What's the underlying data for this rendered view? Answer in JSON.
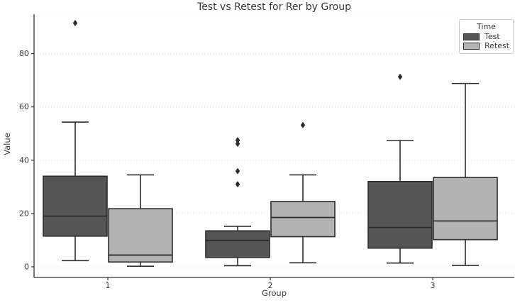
{
  "chart_data": {
    "type": "boxplot",
    "title": "Test vs Retest for Rer by Group",
    "xlabel": "Group",
    "ylabel": "Value",
    "categories": [
      "1",
      "2",
      "3"
    ],
    "yticks": [
      0,
      20,
      40,
      60,
      80
    ],
    "ylim": [
      -4,
      94.8
    ],
    "grid": "horizontal dotted gridlines at y ticks",
    "legend": {
      "title": "Time",
      "position": "upper right",
      "entries": [
        {
          "label": "Test",
          "color": "#555556"
        },
        {
          "label": "Retest",
          "color": "#b3b3b4"
        }
      ]
    },
    "series": [
      {
        "name": "Test",
        "color": "#555556",
        "boxes": [
          {
            "category": "1",
            "whisker_low": 2.3,
            "q1": 11.5,
            "median": 19.0,
            "q3": 34.0,
            "whisker_high": 54.3,
            "outliers": [
              91.5
            ]
          },
          {
            "category": "2",
            "whisker_low": 0.4,
            "q1": 3.5,
            "median": 9.9,
            "q3": 13.5,
            "whisker_high": 15.2,
            "outliers": [
              31.0,
              35.9,
              46.2,
              47.5
            ]
          },
          {
            "category": "3",
            "whisker_low": 1.4,
            "q1": 7.0,
            "median": 14.7,
            "q3": 32.0,
            "whisker_high": 47.4,
            "outliers": [
              71.3
            ]
          }
        ]
      },
      {
        "name": "Retest",
        "color": "#b3b3b4",
        "boxes": [
          {
            "category": "1",
            "whisker_low": 0.2,
            "q1": 1.8,
            "median": 4.4,
            "q3": 21.8,
            "whisker_high": 34.5,
            "outliers": []
          },
          {
            "category": "2",
            "whisker_low": 1.5,
            "q1": 11.3,
            "median": 18.5,
            "q3": 24.5,
            "whisker_high": 34.5,
            "outliers": [
              53.2
            ]
          },
          {
            "category": "3",
            "whisker_low": 0.5,
            "q1": 10.2,
            "median": 17.2,
            "q3": 33.5,
            "whisker_high": 68.8,
            "outliers": []
          }
        ]
      }
    ],
    "colors": {
      "box_edge": "#2d2d2d",
      "gridline": "#dadada",
      "spine": "#333333",
      "text": "#3a3a3a",
      "background": "#ffffff"
    }
  }
}
